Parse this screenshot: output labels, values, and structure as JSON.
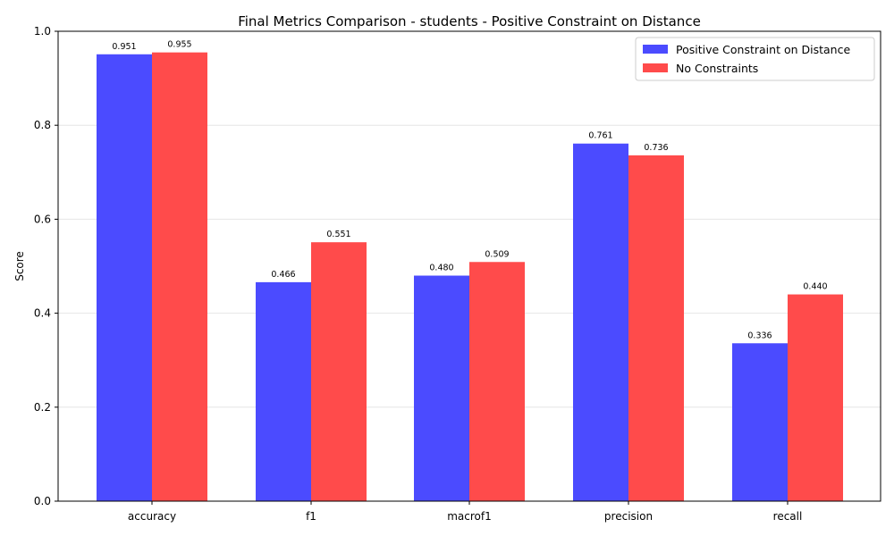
{
  "chart_data": {
    "type": "bar",
    "title": "Final Metrics Comparison - students - Positive Constraint on Distance",
    "xlabel": "",
    "ylabel": "Score",
    "ylim": [
      0,
      1.0
    ],
    "yticks": [
      "0.0",
      "0.2",
      "0.4",
      "0.6",
      "0.8",
      "1.0"
    ],
    "categories": [
      "accuracy",
      "f1",
      "macrof1",
      "precision",
      "recall"
    ],
    "series": [
      {
        "name": "Positive Constraint on Distance",
        "color": "#4b4bff",
        "values": [
          0.951,
          0.466,
          0.48,
          0.761,
          0.336
        ],
        "labels": [
          "0.951",
          "0.466",
          "0.480",
          "0.761",
          "0.336"
        ]
      },
      {
        "name": "No Constraints",
        "color": "#ff4b4b",
        "values": [
          0.955,
          0.551,
          0.509,
          0.736,
          0.44
        ],
        "labels": [
          "0.955",
          "0.551",
          "0.509",
          "0.736",
          "0.440"
        ]
      }
    ],
    "grid": "y-major",
    "legend_position": "top-right"
  }
}
